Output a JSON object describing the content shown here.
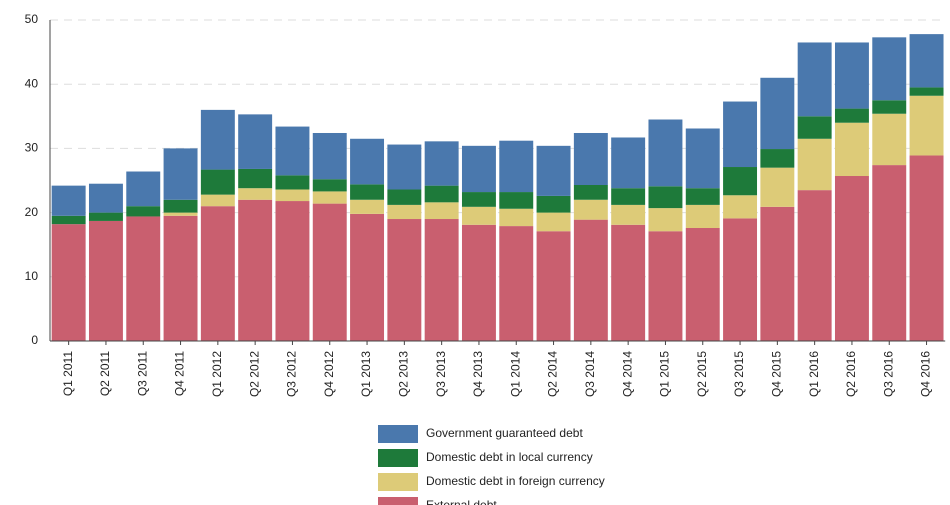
{
  "chart_data": {
    "type": "stacked_bar",
    "categories": [
      "Q1 2011",
      "Q2 2011",
      "Q3 2011",
      "Q4 2011",
      "Q1 2012",
      "Q2 2012",
      "Q3 2012",
      "Q4 2012",
      "Q1 2013",
      "Q2 2013",
      "Q3 2013",
      "Q4 2013",
      "Q1 2014",
      "Q2 2014",
      "Q3 2014",
      "Q4 2014",
      "Q1 2015",
      "Q2 2015",
      "Q3 2015",
      "Q4 2015",
      "Q1 2016",
      "Q2 2016",
      "Q3 2016",
      "Q4 2016"
    ],
    "series": [
      {
        "name": "External debt",
        "color": "#c95f6f",
        "values": [
          18.2,
          18.7,
          19.4,
          19.5,
          21.0,
          22.0,
          21.8,
          21.4,
          19.8,
          19.0,
          19.0,
          18.1,
          17.9,
          17.1,
          18.9,
          18.1,
          17.1,
          17.6,
          19.1,
          20.9,
          23.5,
          25.7,
          27.4,
          28.9
        ]
      },
      {
        "name": "Domestic debt in foreign currency",
        "color": "#ddcb78",
        "values": [
          0,
          0,
          0,
          0.5,
          1.8,
          1.8,
          1.8,
          1.9,
          2.2,
          2.2,
          2.6,
          2.8,
          2.7,
          2.9,
          3.1,
          3.1,
          3.6,
          3.6,
          3.6,
          6.1,
          8.0,
          8.3,
          8.0,
          9.3
        ]
      },
      {
        "name": "Domestic debt in local currency",
        "color": "#1e7a3a",
        "values": [
          1.3,
          1.3,
          1.6,
          2.0,
          3.9,
          3.0,
          2.2,
          1.9,
          2.4,
          2.4,
          2.6,
          2.3,
          2.6,
          2.6,
          2.3,
          2.6,
          3.4,
          2.6,
          4.4,
          2.9,
          3.5,
          2.2,
          2.1,
          1.3
        ]
      },
      {
        "name": "Government guaranteed debt",
        "color": "#4a78ad",
        "values": [
          4.7,
          4.5,
          5.4,
          8.0,
          9.3,
          8.5,
          7.6,
          7.2,
          7.1,
          7.0,
          6.9,
          7.2,
          8.0,
          7.8,
          8.1,
          7.9,
          10.4,
          9.3,
          10.2,
          11.1,
          11.5,
          10.3,
          9.8,
          8.3
        ]
      }
    ],
    "ylim": [
      0,
      50
    ],
    "yticks": [
      0,
      10,
      20,
      30,
      40,
      50
    ],
    "grid": true
  }
}
